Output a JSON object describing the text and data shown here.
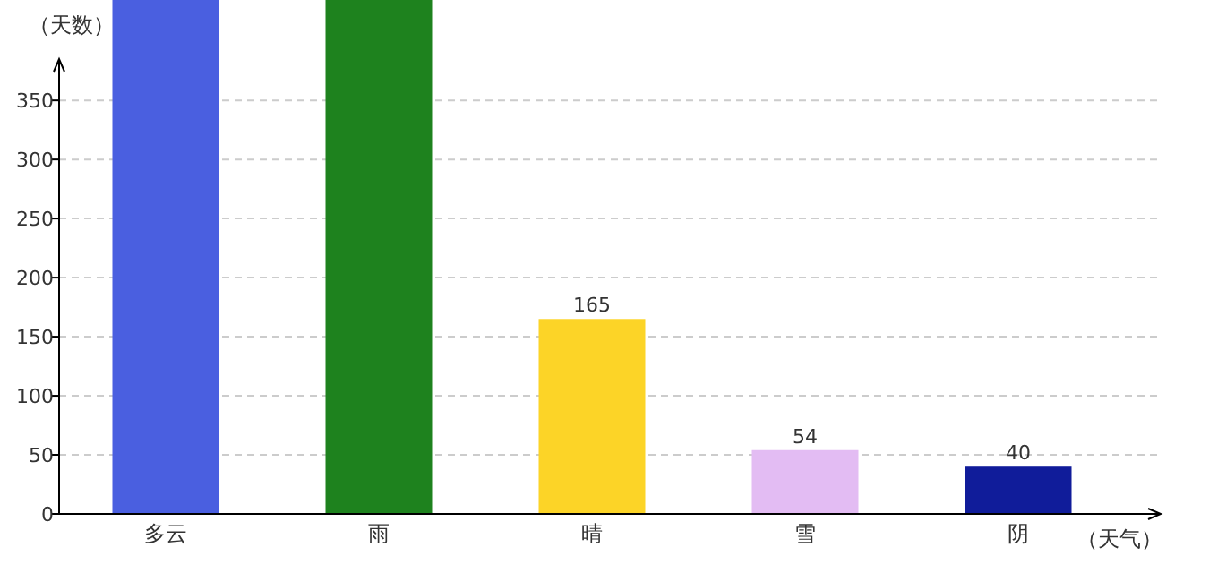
{
  "chart_data": {
    "type": "bar",
    "xlabel": "（天气）",
    "ylabel": "（天数）",
    "categories": [
      "多云",
      "雨",
      "晴",
      "雪",
      "阴"
    ],
    "values": [
      435,
      435,
      165,
      54,
      40
    ],
    "colors": [
      "#4a5fe0",
      "#1e821e",
      "#fcd427",
      "#e3bcf3",
      "#101c9a"
    ],
    "value_labels": [
      null,
      null,
      "165",
      "54",
      "40"
    ],
    "ylim": [
      0,
      435
    ],
    "yticks": [
      0,
      50,
      100,
      150,
      200,
      250,
      300,
      350
    ],
    "grid": "y"
  }
}
